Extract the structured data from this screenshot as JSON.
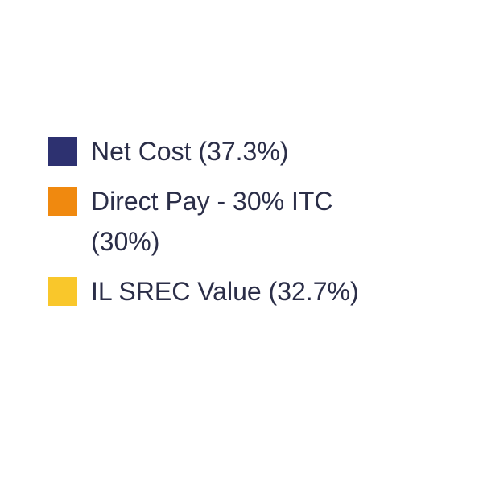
{
  "legend": {
    "items": [
      {
        "label": "Net Cost (37.3%)",
        "color": "#2d3170"
      },
      {
        "label": "Direct Pay - 30% ITC (30%)",
        "color": "#f0890f"
      },
      {
        "label": "IL SREC Value (32.7%)",
        "color": "#f9c72b"
      }
    ]
  }
}
